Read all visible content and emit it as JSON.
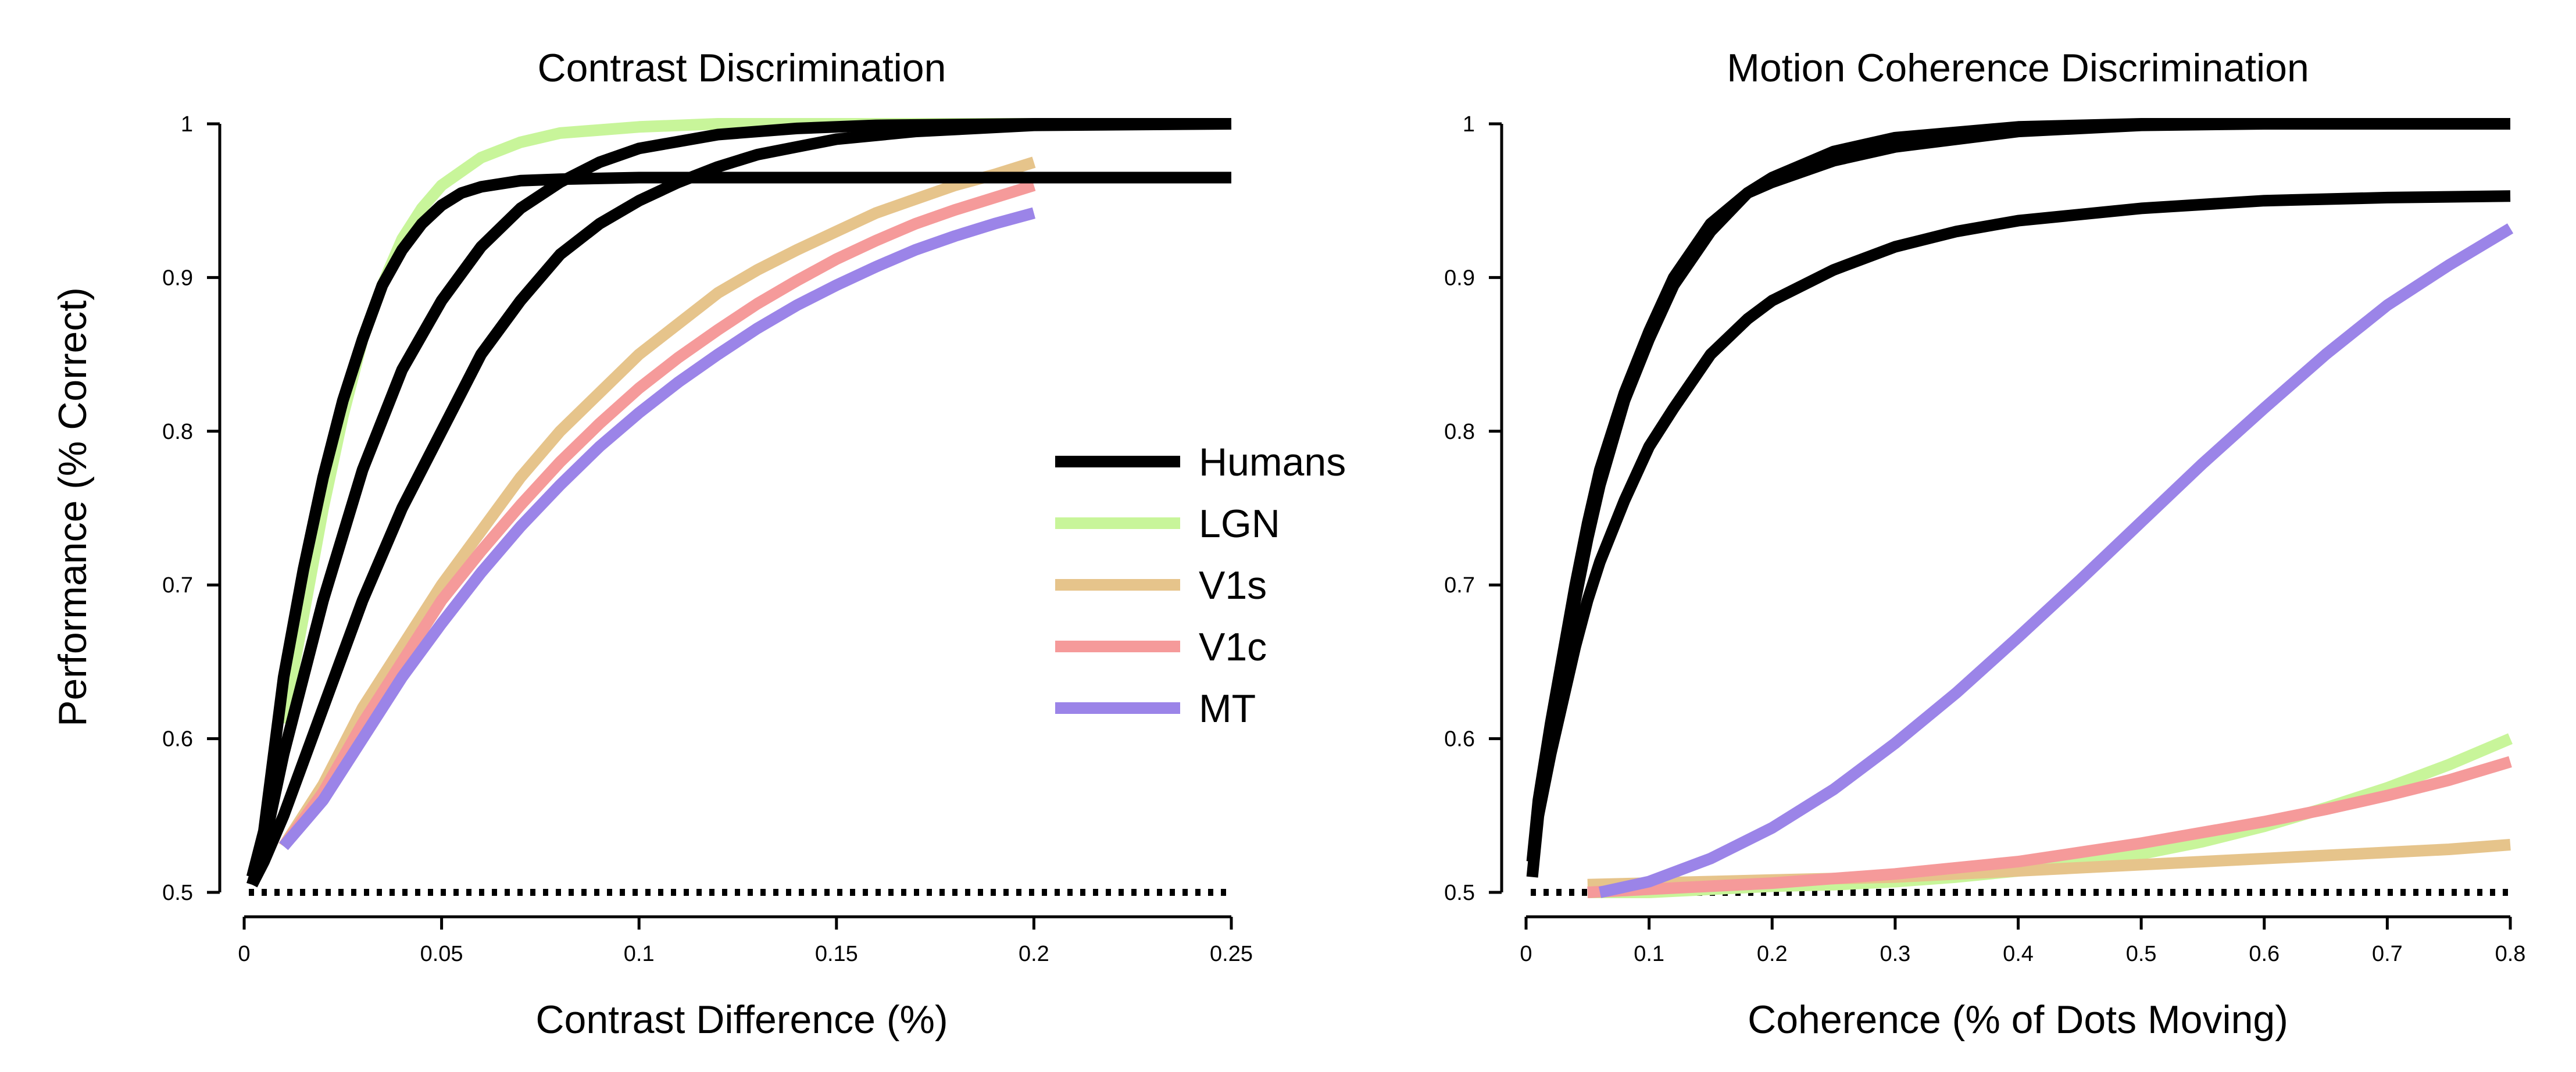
{
  "chart_data": [
    {
      "type": "line",
      "title": "Contrast Discrimination",
      "xlabel": "Contrast Difference (%)",
      "ylabel": "Performance (% Correct)",
      "xlim": [
        0,
        0.25
      ],
      "ylim": [
        0.5,
        1
      ],
      "xticks": [
        "0",
        "0.05",
        "0.1",
        "0.15",
        "0.2",
        "0.25"
      ],
      "xtick_values": [
        0,
        0.05,
        0.1,
        0.15,
        0.2,
        0.25
      ],
      "yticks": [
        "0.5",
        "0.6",
        "0.7",
        "0.8",
        "0.9",
        "1"
      ],
      "ytick_values": [
        0.5,
        0.6,
        0.7,
        0.8,
        0.9,
        1
      ],
      "chance_level": 0.5,
      "grid": false,
      "legend": {
        "placement": "right",
        "entries": [
          {
            "label": "Humans",
            "color": "#000000"
          },
          {
            "label": "LGN",
            "color": "#c8f59a"
          },
          {
            "label": "V1s",
            "color": "#e6c48b"
          },
          {
            "label": "V1c",
            "color": "#f59a9a"
          },
          {
            "label": "MT",
            "color": "#9b84e8"
          }
        ]
      },
      "series": [
        {
          "group": "Humans",
          "color": "#000000",
          "x": [
            0.002,
            0.005,
            0.01,
            0.015,
            0.02,
            0.025,
            0.03,
            0.035,
            0.04,
            0.045,
            0.05,
            0.055,
            0.06,
            0.07,
            0.08,
            0.1,
            0.15,
            0.2,
            0.25
          ],
          "y": [
            0.51,
            0.54,
            0.64,
            0.71,
            0.77,
            0.82,
            0.86,
            0.895,
            0.918,
            0.935,
            0.947,
            0.955,
            0.959,
            0.963,
            0.964,
            0.965,
            0.965,
            0.965,
            0.965
          ]
        },
        {
          "group": "Humans",
          "color": "#000000",
          "x": [
            0.002,
            0.005,
            0.01,
            0.02,
            0.03,
            0.04,
            0.05,
            0.06,
            0.07,
            0.08,
            0.09,
            0.1,
            0.12,
            0.14,
            0.16,
            0.2,
            0.25
          ],
          "y": [
            0.505,
            0.53,
            0.59,
            0.69,
            0.775,
            0.84,
            0.885,
            0.92,
            0.945,
            0.962,
            0.975,
            0.984,
            0.993,
            0.997,
            0.999,
            1.0,
            1.0
          ]
        },
        {
          "group": "Humans",
          "color": "#000000",
          "x": [
            0.002,
            0.005,
            0.01,
            0.02,
            0.03,
            0.04,
            0.05,
            0.06,
            0.07,
            0.08,
            0.09,
            0.1,
            0.11,
            0.12,
            0.13,
            0.15,
            0.17,
            0.2,
            0.25
          ],
          "y": [
            0.505,
            0.52,
            0.55,
            0.62,
            0.69,
            0.75,
            0.8,
            0.85,
            0.885,
            0.915,
            0.935,
            0.95,
            0.962,
            0.972,
            0.98,
            0.99,
            0.995,
            0.999,
            1.0
          ]
        },
        {
          "group": "LGN",
          "color": "#c8f59a",
          "x": [
            0.01,
            0.015,
            0.02,
            0.025,
            0.03,
            0.035,
            0.04,
            0.045,
            0.05,
            0.06,
            0.07,
            0.08,
            0.1,
            0.12,
            0.15,
            0.2
          ],
          "y": [
            0.61,
            0.68,
            0.75,
            0.81,
            0.86,
            0.895,
            0.925,
            0.945,
            0.96,
            0.978,
            0.988,
            0.994,
            0.998,
            1.0,
            1.0,
            1.0
          ]
        },
        {
          "group": "V1s",
          "color": "#e6c48b",
          "x": [
            0.01,
            0.02,
            0.03,
            0.04,
            0.05,
            0.06,
            0.07,
            0.08,
            0.09,
            0.1,
            0.11,
            0.12,
            0.13,
            0.14,
            0.15,
            0.16,
            0.17,
            0.18,
            0.19,
            0.2
          ],
          "y": [
            0.53,
            0.57,
            0.62,
            0.66,
            0.7,
            0.735,
            0.77,
            0.8,
            0.825,
            0.85,
            0.87,
            0.89,
            0.905,
            0.918,
            0.93,
            0.942,
            0.951,
            0.96,
            0.967,
            0.975
          ]
        },
        {
          "group": "V1c",
          "color": "#f59a9a",
          "x": [
            0.01,
            0.02,
            0.03,
            0.04,
            0.05,
            0.06,
            0.07,
            0.08,
            0.09,
            0.1,
            0.11,
            0.12,
            0.13,
            0.14,
            0.15,
            0.16,
            0.17,
            0.18,
            0.19,
            0.2
          ],
          "y": [
            0.53,
            0.565,
            0.61,
            0.65,
            0.69,
            0.722,
            0.752,
            0.78,
            0.805,
            0.828,
            0.848,
            0.866,
            0.883,
            0.898,
            0.912,
            0.924,
            0.935,
            0.944,
            0.952,
            0.96
          ]
        },
        {
          "group": "MT",
          "color": "#9b84e8",
          "x": [
            0.01,
            0.02,
            0.03,
            0.04,
            0.05,
            0.06,
            0.07,
            0.08,
            0.09,
            0.1,
            0.11,
            0.12,
            0.13,
            0.14,
            0.15,
            0.16,
            0.17,
            0.18,
            0.19,
            0.2
          ],
          "y": [
            0.53,
            0.56,
            0.6,
            0.64,
            0.675,
            0.708,
            0.738,
            0.765,
            0.79,
            0.812,
            0.832,
            0.85,
            0.867,
            0.882,
            0.895,
            0.907,
            0.918,
            0.927,
            0.935,
            0.942
          ]
        }
      ]
    },
    {
      "type": "line",
      "title": "Motion Coherence Discrimination",
      "xlabel": "Coherence (% of Dots Moving)",
      "ylabel": "",
      "xlim": [
        0,
        0.8
      ],
      "ylim": [
        0.5,
        1
      ],
      "xticks": [
        "0",
        "0.1",
        "0.2",
        "0.3",
        "0.4",
        "0.5",
        "0.6",
        "0.7",
        "0.8"
      ],
      "xtick_values": [
        0,
        0.1,
        0.2,
        0.3,
        0.4,
        0.5,
        0.6,
        0.7,
        0.8
      ],
      "yticks": [
        "0.5",
        "0.6",
        "0.7",
        "0.8",
        "0.9",
        "1"
      ],
      "ytick_values": [
        0.5,
        0.6,
        0.7,
        0.8,
        0.9,
        1
      ],
      "chance_level": 0.5,
      "grid": false,
      "series": [
        {
          "group": "Humans",
          "color": "#000000",
          "x": [
            0.005,
            0.01,
            0.02,
            0.03,
            0.04,
            0.05,
            0.06,
            0.08,
            0.1,
            0.12,
            0.15,
            0.18,
            0.2,
            0.25,
            0.3,
            0.4,
            0.5,
            0.6,
            0.8
          ],
          "y": [
            0.51,
            0.55,
            0.6,
            0.645,
            0.69,
            0.73,
            0.765,
            0.82,
            0.86,
            0.895,
            0.93,
            0.955,
            0.965,
            0.982,
            0.991,
            0.998,
            1.0,
            1.0,
            1.0
          ]
        },
        {
          "group": "Humans",
          "color": "#000000",
          "x": [
            0.005,
            0.01,
            0.02,
            0.03,
            0.04,
            0.05,
            0.06,
            0.08,
            0.1,
            0.12,
            0.15,
            0.18,
            0.2,
            0.25,
            0.3,
            0.4,
            0.5,
            0.6,
            0.8
          ],
          "y": [
            0.52,
            0.56,
            0.61,
            0.655,
            0.7,
            0.74,
            0.775,
            0.825,
            0.865,
            0.9,
            0.935,
            0.955,
            0.962,
            0.976,
            0.985,
            0.995,
            0.999,
            1.0,
            1.0
          ]
        },
        {
          "group": "Humans",
          "color": "#000000",
          "x": [
            0.01,
            0.02,
            0.03,
            0.04,
            0.05,
            0.06,
            0.08,
            0.1,
            0.12,
            0.15,
            0.18,
            0.2,
            0.25,
            0.3,
            0.35,
            0.4,
            0.5,
            0.6,
            0.7,
            0.8
          ],
          "y": [
            0.55,
            0.59,
            0.625,
            0.66,
            0.69,
            0.715,
            0.755,
            0.79,
            0.815,
            0.85,
            0.873,
            0.885,
            0.905,
            0.92,
            0.93,
            0.937,
            0.945,
            0.95,
            0.952,
            0.953
          ]
        },
        {
          "group": "LGN",
          "color": "#c8f59a",
          "x": [
            0.05,
            0.1,
            0.15,
            0.2,
            0.25,
            0.3,
            0.35,
            0.4,
            0.45,
            0.5,
            0.55,
            0.6,
            0.65,
            0.7,
            0.75,
            0.8
          ],
          "y": [
            0.5,
            0.5,
            0.502,
            0.504,
            0.505,
            0.507,
            0.51,
            0.514,
            0.519,
            0.525,
            0.533,
            0.543,
            0.555,
            0.568,
            0.583,
            0.6
          ]
        },
        {
          "group": "V1s",
          "color": "#e6c48b",
          "x": [
            0.05,
            0.1,
            0.15,
            0.2,
            0.25,
            0.3,
            0.35,
            0.4,
            0.45,
            0.5,
            0.55,
            0.6,
            0.65,
            0.7,
            0.75,
            0.8
          ],
          "y": [
            0.505,
            0.506,
            0.507,
            0.508,
            0.509,
            0.51,
            0.512,
            0.514,
            0.516,
            0.518,
            0.52,
            0.522,
            0.524,
            0.526,
            0.528,
            0.531
          ]
        },
        {
          "group": "V1c",
          "color": "#f59a9a",
          "x": [
            0.05,
            0.1,
            0.15,
            0.2,
            0.25,
            0.3,
            0.35,
            0.4,
            0.45,
            0.5,
            0.55,
            0.6,
            0.65,
            0.7,
            0.75,
            0.8
          ],
          "y": [
            0.5,
            0.502,
            0.504,
            0.506,
            0.509,
            0.512,
            0.516,
            0.52,
            0.526,
            0.532,
            0.539,
            0.546,
            0.554,
            0.563,
            0.573,
            0.585
          ]
        },
        {
          "group": "MT",
          "color": "#9b84e8",
          "x": [
            0.06,
            0.1,
            0.15,
            0.2,
            0.25,
            0.3,
            0.35,
            0.4,
            0.45,
            0.5,
            0.55,
            0.6,
            0.65,
            0.7,
            0.75,
            0.8
          ],
          "y": [
            0.5,
            0.507,
            0.522,
            0.542,
            0.567,
            0.597,
            0.63,
            0.666,
            0.703,
            0.741,
            0.779,
            0.815,
            0.85,
            0.882,
            0.908,
            0.932
          ]
        }
      ]
    }
  ]
}
